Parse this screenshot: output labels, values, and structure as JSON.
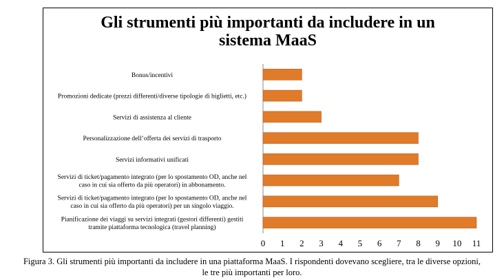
{
  "chart_data": {
    "type": "bar",
    "orientation": "horizontal",
    "title_lines": [
      "Gli strumenti più importanti da includere in un",
      "sistema MaaS"
    ],
    "categories": [
      [
        "Pianificazione dei viaggi su servizi integrati (gestori differenti) gestiti",
        "tramite piattaforma tecnologica (travel planning)"
      ],
      [
        "Servizi di ticket/pagamento integrato (per lo spostamento OD, anche nel",
        "caso in cui sia offerto da più operatori) per un singolo viaggio."
      ],
      [
        "Servizi di ticket/pagamento integrato (per lo spostamento OD, anche nel",
        "caso in cui sia offerto da più operatori) in abbonamento."
      ],
      [
        "Servizi informativi unificati"
      ],
      [
        "Personalizzazione dell’offerta dei servizi di trasporto"
      ],
      [
        "Servizi di assistenza al cliente"
      ],
      [
        "Promozioni dedicate (prezzi differenti/diverse tipologie di biglietti, etc.)"
      ],
      [
        "Bonus/incentivi"
      ]
    ],
    "values": [
      11,
      9,
      7,
      8,
      8,
      3,
      2,
      2
    ],
    "xlim": [
      0,
      11
    ],
    "xticks": [
      "0",
      "1",
      "2",
      "3",
      "4",
      "5",
      "6",
      "7",
      "8",
      "9",
      "10",
      "11"
    ],
    "bar_color": "#E07B2A",
    "bar_edge_color": "#B8601B",
    "grid": false,
    "legend": "none"
  },
  "caption_lines": [
    "Figura 3. Gli strumenti più importanti da includere in una piattaforma MaaS. I rispondenti dovevano scegliere, tra le diverse opzioni,",
    "le tre più importanti per loro."
  ]
}
